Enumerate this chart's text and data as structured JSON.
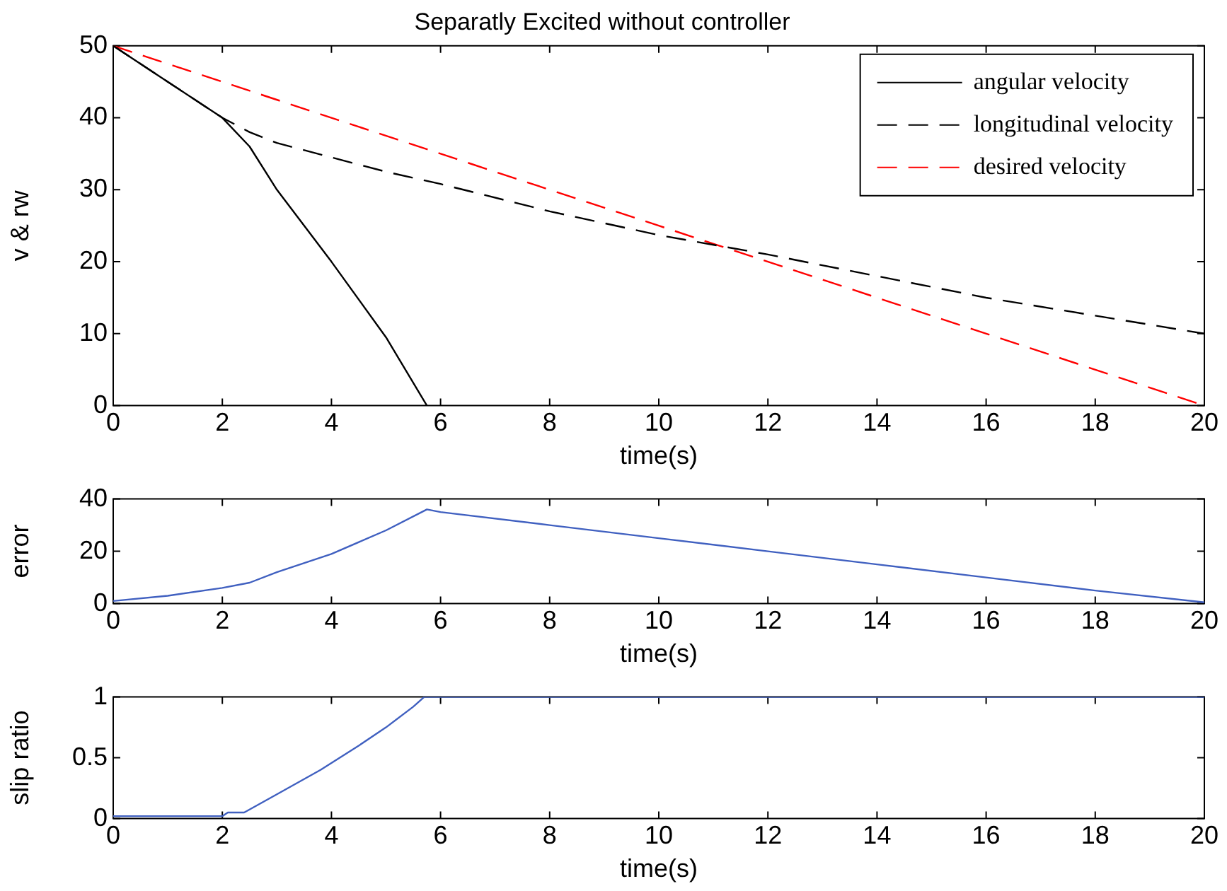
{
  "chart_data": [
    {
      "type": "line",
      "title": "Separatly Excited without controller",
      "xlabel": "time(s)",
      "ylabel": "v & rw",
      "xlim": [
        0,
        20
      ],
      "xticks": [
        0,
        2,
        4,
        6,
        8,
        10,
        12,
        14,
        16,
        18,
        20
      ],
      "ylim": [
        0,
        50
      ],
      "yticks": [
        0,
        10,
        20,
        30,
        40,
        50
      ],
      "grid": false,
      "legend": "top right",
      "marker": "none",
      "series": [
        {
          "name": "angular velocity",
          "color": "#000000",
          "line_style": "solid",
          "x": [
            0,
            1,
            2,
            2.5,
            3,
            4,
            5,
            5.75
          ],
          "values": [
            50,
            45,
            40,
            36,
            30,
            20,
            9.5,
            0
          ]
        },
        {
          "name": "longitudinal velocity",
          "color": "#000000",
          "line_style": "dashed",
          "x": [
            0,
            1,
            2,
            2.5,
            3,
            4,
            5,
            6,
            8,
            10,
            12,
            14,
            16,
            18,
            20
          ],
          "values": [
            50,
            45,
            40,
            38,
            36.5,
            34.5,
            32.5,
            30.8,
            27,
            23.7,
            21,
            18,
            15,
            12.5,
            10
          ]
        },
        {
          "name": "desired velocity",
          "color": "#ff0000",
          "line_style": "dashed",
          "x": [
            0,
            10,
            20
          ],
          "values": [
            50,
            25,
            0
          ]
        }
      ]
    },
    {
      "type": "line",
      "xlabel": "time(s)",
      "ylabel": "error",
      "xlim": [
        0,
        20
      ],
      "xticks": [
        0,
        2,
        4,
        6,
        8,
        10,
        12,
        14,
        16,
        18,
        20
      ],
      "ylim": [
        0,
        40
      ],
      "yticks": [
        0,
        20,
        40
      ],
      "grid": false,
      "legend": false,
      "marker": "none",
      "series": [
        {
          "color": "#4060c0",
          "line_style": "solid",
          "x": [
            0,
            1,
            2,
            2.5,
            3,
            4,
            5,
            5.75,
            6,
            8,
            10,
            12,
            14,
            16,
            18,
            20
          ],
          "values": [
            1,
            3,
            6,
            8,
            12,
            19,
            28,
            36,
            35,
            30,
            25,
            20,
            15,
            10,
            5,
            0.5
          ]
        }
      ]
    },
    {
      "type": "line",
      "xlabel": "time(s)",
      "ylabel": "slip ratio",
      "xlim": [
        0,
        20
      ],
      "xticks": [
        0,
        2,
        4,
        6,
        8,
        10,
        12,
        14,
        16,
        18,
        20
      ],
      "ylim": [
        0,
        1
      ],
      "yticks": [
        0,
        0.5,
        1
      ],
      "grid": false,
      "legend": false,
      "marker": "none",
      "series": [
        {
          "color": "#4060c0",
          "line_style": "solid",
          "x": [
            0,
            2,
            2.1,
            2.4,
            3,
            3.8,
            4.5,
            5,
            5.5,
            5.7,
            20
          ],
          "values": [
            0.02,
            0.02,
            0.05,
            0.05,
            0.2,
            0.4,
            0.6,
            0.75,
            0.92,
            1,
            1
          ]
        }
      ]
    }
  ]
}
